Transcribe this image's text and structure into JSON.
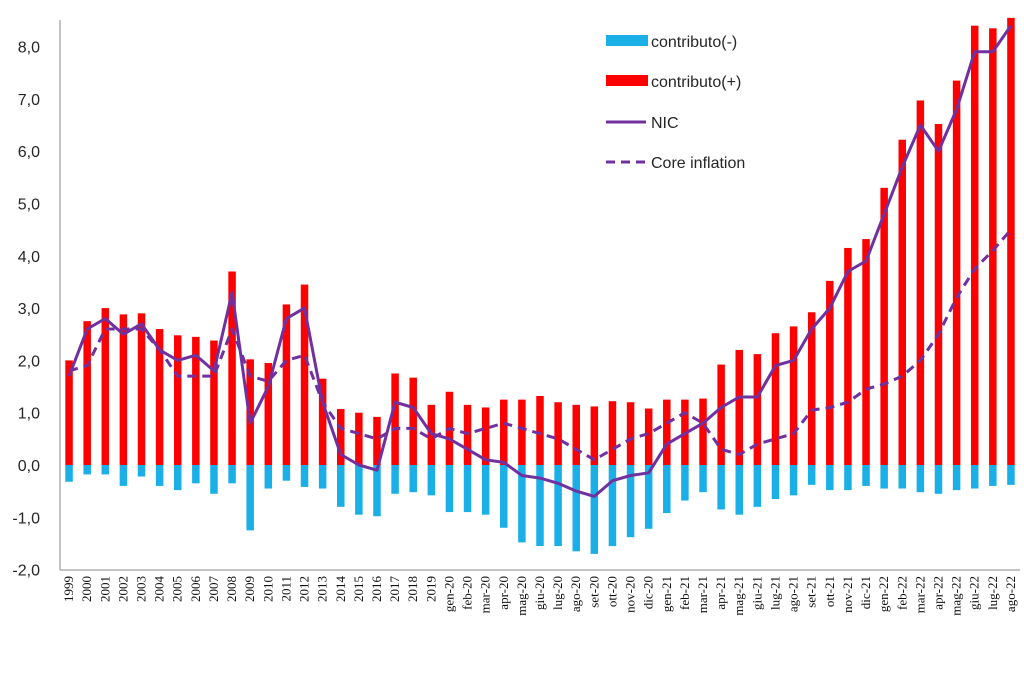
{
  "chart_data": {
    "type": "bar",
    "title": "",
    "xlabel": "",
    "ylabel": "",
    "ylim": [
      -2.0,
      8.5
    ],
    "yticks": [
      "8,0",
      "7,0",
      "6,0",
      "5,0",
      "4,0",
      "3,0",
      "2,0",
      "1,0",
      "0,0",
      "-1,0",
      "-2,0"
    ],
    "ytick_values": [
      8,
      7,
      6,
      5,
      4,
      3,
      2,
      1,
      0,
      -1,
      -2
    ],
    "grid": false,
    "legend_position": "top-right",
    "categories": [
      "1999",
      "2000",
      "2001",
      "2002",
      "2003",
      "2004",
      "2005",
      "2006",
      "2007",
      "2008",
      "2009",
      "2010",
      "2011",
      "2012",
      "2013",
      "2014",
      "2015",
      "2016",
      "2017",
      "2018",
      "2019",
      "gen-20",
      "feb-20",
      "mar-20",
      "apr-20",
      "mag-20",
      "giu-20",
      "lug-20",
      "ago-20",
      "set-20",
      "ott-20",
      "nov-20",
      "dic-20",
      "gen-21",
      "feb-21",
      "mar-21",
      "apr-21",
      "mag-21",
      "giu-21",
      "lug-21",
      "ago-21",
      "set-21",
      "ott-21",
      "nov-21",
      "dic-21",
      "gen-22",
      "feb-22",
      "mar-22",
      "apr-22",
      "mag-22",
      "giu-22",
      "lug-22",
      "ago-22"
    ],
    "series": [
      {
        "name": "contributo(-)",
        "kind": "bar",
        "color": "#1AAFE6",
        "values": [
          -0.32,
          -0.18,
          -0.18,
          -0.4,
          -0.22,
          -0.4,
          -0.48,
          -0.35,
          -0.55,
          -0.35,
          -1.25,
          -0.45,
          -0.3,
          -0.42,
          -0.45,
          -0.8,
          -0.95,
          -0.98,
          -0.55,
          -0.52,
          -0.58,
          -0.9,
          -0.9,
          -0.95,
          -1.2,
          -1.48,
          -1.55,
          -1.55,
          -1.65,
          -1.7,
          -1.55,
          -1.38,
          -1.22,
          -0.92,
          -0.68,
          -0.52,
          -0.85,
          -0.95,
          -0.8,
          -0.65,
          -0.58,
          -0.38,
          -0.48,
          -0.48,
          -0.4,
          -0.45,
          -0.45,
          -0.52,
          -0.55,
          -0.48,
          -0.45,
          -0.4,
          -0.38
        ]
      },
      {
        "name": "contributo(+)",
        "kind": "bar",
        "color": "#FF0000",
        "values": [
          2.0,
          2.75,
          3.0,
          2.88,
          2.9,
          2.6,
          2.48,
          2.45,
          2.38,
          3.7,
          2.02,
          1.95,
          3.07,
          3.45,
          1.65,
          1.07,
          1.0,
          0.92,
          1.75,
          1.67,
          1.15,
          1.4,
          1.15,
          1.1,
          1.25,
          1.25,
          1.32,
          1.2,
          1.15,
          1.12,
          1.22,
          1.2,
          1.08,
          1.25,
          1.25,
          1.27,
          1.92,
          2.2,
          2.12,
          2.52,
          2.65,
          2.92,
          3.52,
          4.15,
          4.32,
          5.3,
          6.22,
          6.97,
          6.52,
          7.35,
          8.4,
          8.35,
          8.55
        ]
      },
      {
        "name": "NIC",
        "kind": "line",
        "style": "solid",
        "color": "#7030A0",
        "values": [
          1.7,
          2.6,
          2.8,
          2.5,
          2.7,
          2.2,
          2.0,
          2.1,
          1.8,
          3.3,
          0.8,
          1.5,
          2.8,
          3.0,
          1.2,
          0.2,
          0.0,
          -0.1,
          1.2,
          1.1,
          0.6,
          0.5,
          0.3,
          0.1,
          0.05,
          -0.2,
          -0.25,
          -0.35,
          -0.5,
          -0.6,
          -0.3,
          -0.2,
          -0.15,
          0.4,
          0.6,
          0.8,
          1.1,
          1.3,
          1.3,
          1.9,
          2.0,
          2.6,
          3.0,
          3.7,
          3.9,
          4.8,
          5.7,
          6.5,
          6.0,
          6.8,
          7.9,
          7.9,
          8.4
        ]
      },
      {
        "name": "Core inflation",
        "kind": "line",
        "style": "dashed",
        "color": "#7030A0",
        "values": [
          1.8,
          1.9,
          2.6,
          2.6,
          2.6,
          2.2,
          1.7,
          1.7,
          1.7,
          2.6,
          1.7,
          1.6,
          2.0,
          2.1,
          1.2,
          0.7,
          0.6,
          0.5,
          0.7,
          0.7,
          0.5,
          0.7,
          0.6,
          0.7,
          0.8,
          0.7,
          0.6,
          0.5,
          0.3,
          0.1,
          0.3,
          0.5,
          0.6,
          0.8,
          1.0,
          0.8,
          0.3,
          0.2,
          0.4,
          0.5,
          0.6,
          1.05,
          1.1,
          1.2,
          1.45,
          1.55,
          1.7,
          2.0,
          2.5,
          3.2,
          3.75,
          4.1,
          4.5
        ]
      }
    ]
  }
}
